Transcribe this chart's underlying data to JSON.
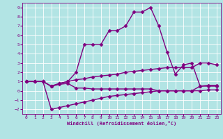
{
  "background_color": "#b2e4e4",
  "grid_color": "#ffffff",
  "line_color": "#800080",
  "xlim": [
    -0.5,
    23.5
  ],
  "ylim": [
    -2.5,
    9.5
  ],
  "xticks": [
    0,
    1,
    2,
    3,
    4,
    5,
    6,
    7,
    8,
    9,
    10,
    11,
    12,
    13,
    14,
    15,
    16,
    17,
    18,
    19,
    20,
    21,
    22,
    23
  ],
  "yticks": [
    -2,
    -1,
    0,
    1,
    2,
    3,
    4,
    5,
    6,
    7,
    8,
    9
  ],
  "xlabel": "Windchill (Refroidissement éolien,°C)",
  "curves": [
    {
      "x": [
        0,
        1,
        2,
        3,
        4,
        5,
        6,
        7,
        8,
        9,
        10,
        11,
        12,
        13,
        14,
        15,
        16,
        17,
        18,
        19,
        20,
        21,
        22,
        23
      ],
      "y": [
        1.0,
        1.0,
        1.0,
        -2.0,
        -1.8,
        -1.6,
        -1.4,
        -1.2,
        -1.0,
        -0.8,
        -0.6,
        -0.5,
        -0.4,
        -0.3,
        -0.2,
        -0.1,
        0.0,
        0.0,
        0.0,
        0.0,
        0.0,
        0.0,
        0.1,
        0.1
      ],
      "marker": "D",
      "markersize": 2.5,
      "linewidth": 1.0,
      "linestyle": "-"
    },
    {
      "x": [
        0,
        1,
        2,
        3,
        4,
        5,
        6,
        7,
        8,
        9,
        10,
        11,
        12,
        13,
        14,
        15,
        16,
        17,
        18,
        19,
        20,
        21,
        22,
        23
      ],
      "y": [
        1.0,
        1.0,
        1.0,
        0.5,
        0.7,
        0.8,
        0.3,
        0.3,
        0.2,
        0.2,
        0.2,
        0.2,
        0.2,
        0.2,
        0.2,
        0.2,
        0.0,
        0.0,
        0.0,
        0.0,
        0.0,
        0.5,
        0.6,
        0.6
      ],
      "marker": "D",
      "markersize": 2.5,
      "linewidth": 1.0,
      "linestyle": "-"
    },
    {
      "x": [
        0,
        1,
        2,
        3,
        4,
        5,
        6,
        7,
        8,
        9,
        10,
        11,
        12,
        13,
        14,
        15,
        16,
        17,
        18,
        19,
        20,
        21,
        22,
        23
      ],
      "y": [
        1.0,
        1.0,
        1.0,
        0.5,
        0.8,
        1.0,
        1.2,
        1.3,
        1.5,
        1.6,
        1.7,
        1.8,
        2.0,
        2.1,
        2.2,
        2.3,
        2.4,
        2.5,
        2.5,
        2.5,
        2.5,
        3.0,
        3.0,
        2.8
      ],
      "marker": "D",
      "markersize": 2.5,
      "linewidth": 1.0,
      "linestyle": "-"
    },
    {
      "x": [
        0,
        1,
        2,
        3,
        4,
        5,
        6,
        7,
        8,
        9,
        10,
        11,
        12,
        13,
        14,
        15,
        16,
        17,
        18,
        19,
        20,
        21,
        22,
        23
      ],
      "y": [
        1.0,
        1.0,
        1.0,
        0.5,
        0.8,
        1.0,
        2.0,
        5.0,
        5.0,
        5.0,
        6.5,
        6.5,
        7.0,
        8.5,
        8.5,
        9.0,
        7.0,
        4.2,
        1.8,
        2.8,
        3.0,
        0.5,
        0.5,
        0.5
      ],
      "marker": "D",
      "markersize": 2.5,
      "linewidth": 1.0,
      "linestyle": "-"
    }
  ]
}
